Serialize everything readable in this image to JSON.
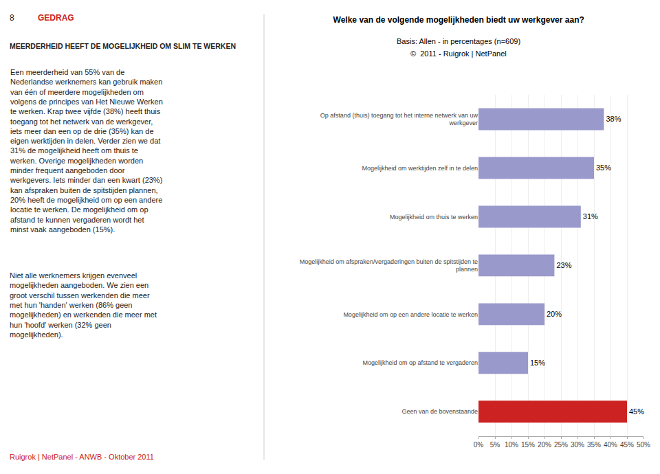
{
  "chart_data": {
    "type": "bar",
    "orientation": "horizontal",
    "title": "Welke van de volgende mogelijkheden biedt uw werkgever aan?",
    "subtitle": [
      "Basis: Allen - in percentages (n=609)",
      "©  2011 - Ruigrok | NetPanel"
    ],
    "annotations": [
      {
        "text": "8",
        "color": "#222222"
      },
      {
        "text": "GEDRAG",
        "color": "#cc2222"
      },
      {
        "text": "MEERDERHEID HEEFT DE MOGELIJKHEID OM SLIM TE WERKEN",
        "color": "#222222"
      },
      {
        "text": "Een meerderheid van 55% van de\nNederlandse werknemers kan gebruik maken\nvan één of meerdere mogelijkheden om\nvolgens de principes van Het Nieuwe Werken\nte werken. Krap twee vijfde (38%) heeft thuis\ntoegang tot het netwerk van de werkgever,\niets meer dan een op de drie (35%) kan de\neigen werktijden in delen. Verder zien we dat\n31% de mogelijkheid heeft om thuis te\nwerken. Overige mogelijkheden worden\nminder frequent aangeboden door\nwerkgevers. Iets minder dan een kwart (23%)\nkan afspraken buiten de spitstijden plannen,\n20% heeft de mogelijkheid om op een andere\nlocatie te werken. De mogelijkheid om op\nafstand te kunnen vergaderen wordt het\nminst vaak aangeboden (15%).",
        "color": "#222222"
      },
      {
        "text": "Niet alle werknemers krijgen evenveel\nmogelijkheden aangeboden. We zien een\ngroot verschil tussen werkenden die meer\nmet hun 'handen' werken (86% geen\nmogelijkheden) en werkenden die meer met\nhun 'hoofd' werken (32% geen\nmogelijkheden).",
        "color": "#222222"
      },
      {
        "text": "Ruigrok | NetPanel - ANWB - Oktober 2011",
        "color": "#cc2222"
      }
    ],
    "categories": [
      "Op afstand (thuis) toegang tot het interne netwerk van uw\nwerkgever",
      "Mogelijkheid om werktijden zelf in te delen",
      "Mogelijkheid om thuis te werken",
      "Mogelijkheid om afspraken/vergaderingen buiten de spitstijden te\nplannen",
      "Mogelijkheid om op een andere locatie te werken",
      "Mogelijkheid om op afstand te vergaderen",
      "Geen van de bovenstaande"
    ],
    "values": [
      38,
      35,
      31,
      23,
      20,
      15,
      45
    ],
    "value_labels": [
      "38%",
      "35%",
      "31%",
      "23%",
      "20%",
      "15%",
      "45%"
    ],
    "data_labels": true,
    "colors": [
      "#9999cc",
      "#9999cc",
      "#9999cc",
      "#9999cc",
      "#9999cc",
      "#9999cc",
      "#cc2222"
    ],
    "xlim": [
      0,
      50
    ],
    "xticks": [
      {
        "value": 0,
        "label": "0%"
      },
      {
        "value": 5,
        "label": "5%"
      },
      {
        "value": 10,
        "label": "10%"
      },
      {
        "value": 15,
        "label": "15%"
      },
      {
        "value": 20,
        "label": "20%"
      },
      {
        "value": 25,
        "label": "25%"
      },
      {
        "value": 30,
        "label": "30%"
      },
      {
        "value": 35,
        "label": "35%"
      },
      {
        "value": 40,
        "label": "40%"
      },
      {
        "value": 45,
        "label": "45%"
      },
      {
        "value": 50,
        "label": "50%"
      }
    ],
    "grid": true
  }
}
